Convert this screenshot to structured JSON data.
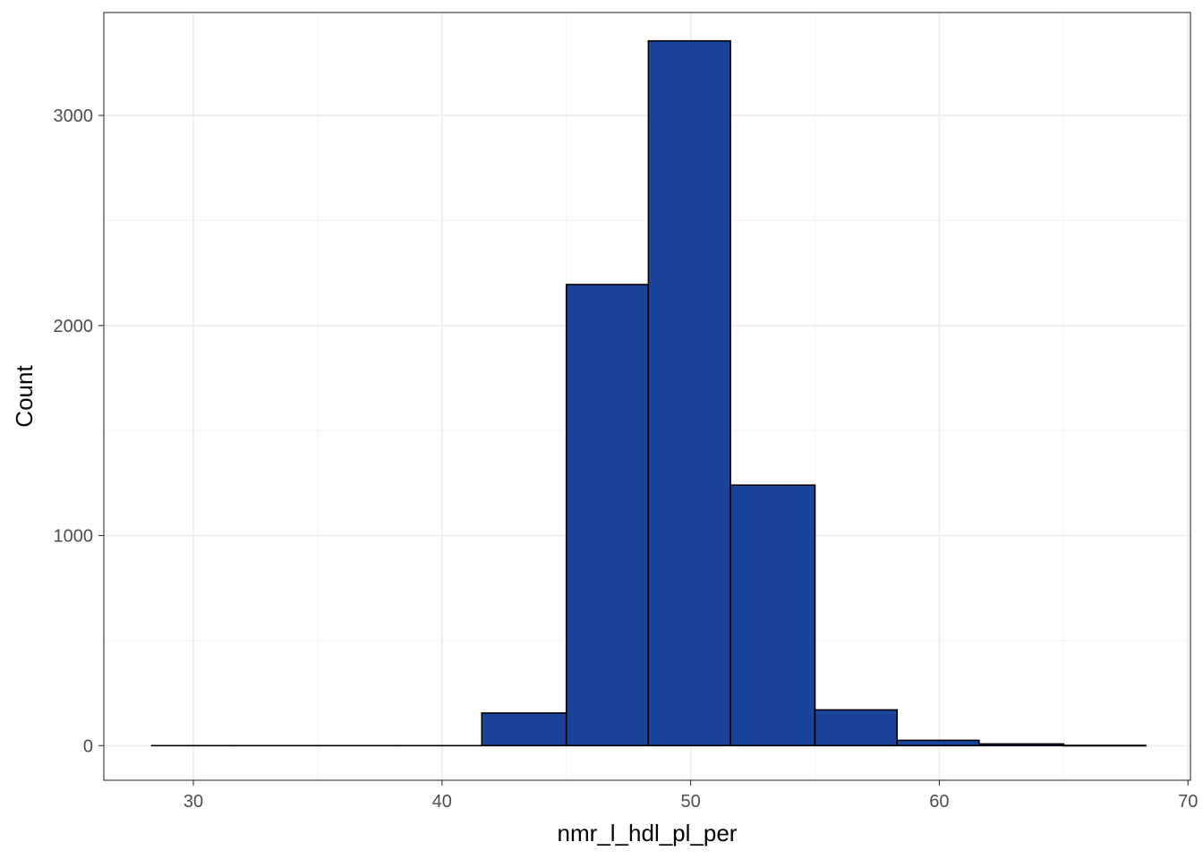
{
  "chart_data": {
    "type": "bar",
    "subtype": "histogram",
    "title": "",
    "xlabel": "nmr_l_hdl_pl_per",
    "ylabel": "Count",
    "xlim": [
      26.4,
      70.1
    ],
    "ylim": [
      -165,
      3490
    ],
    "x_ticks": [
      30,
      40,
      50,
      60,
      70
    ],
    "y_ticks": [
      0,
      1000,
      2000,
      3000
    ],
    "grid": true,
    "legend": "none",
    "bins": [
      {
        "x0": 28.3,
        "x1": 31.6,
        "count": 0
      },
      {
        "x0": 31.6,
        "x1": 35.0,
        "count": 0
      },
      {
        "x0": 35.0,
        "x1": 38.3,
        "count": 0
      },
      {
        "x0": 38.3,
        "x1": 41.6,
        "count": 0
      },
      {
        "x0": 41.6,
        "x1": 45.0,
        "count": 155
      },
      {
        "x0": 45.0,
        "x1": 48.3,
        "count": 2195
      },
      {
        "x0": 48.3,
        "x1": 51.6,
        "count": 3355
      },
      {
        "x0": 51.6,
        "x1": 55.0,
        "count": 1240
      },
      {
        "x0": 55.0,
        "x1": 58.3,
        "count": 170
      },
      {
        "x0": 58.3,
        "x1": 61.6,
        "count": 25
      },
      {
        "x0": 61.6,
        "x1": 65.0,
        "count": 8
      },
      {
        "x0": 65.0,
        "x1": 68.3,
        "count": 1
      }
    ],
    "colors": {
      "bar_fill": "#1a4499",
      "bar_stroke": "#000000",
      "grid_major": "#ebebeb",
      "grid_minor": "#f3f3f3",
      "panel_border": "#333333",
      "tick_text": "#4d4d4d",
      "title_text": "#000000"
    }
  }
}
